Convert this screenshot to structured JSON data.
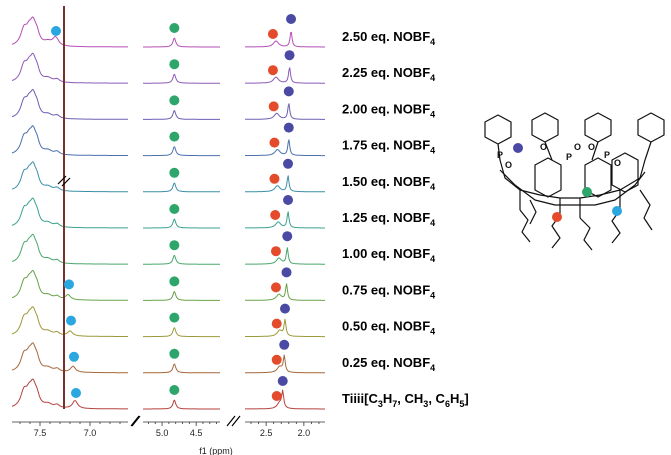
{
  "chart_data": {
    "type": "line",
    "xlabel": "f1 (ppm)",
    "x_ticks": [
      "7.5",
      "7.0",
      "5.0",
      "4.5",
      "2.5",
      "2.0"
    ],
    "x_ranges": [
      [
        7.78,
        6.62
      ],
      [
        5.28,
        4.15
      ],
      [
        2.78,
        1.72
      ]
    ],
    "series": [
      {
        "name_main": "2.50 eq. NOBF",
        "name_sub": "4",
        "name_tail": "",
        "color": "#b44fb6",
        "blue": 7.35,
        "blue_h": 6,
        "green": 4.82,
        "red": 2.37,
        "indigo": 2.17
      },
      {
        "name_main": "2.25 eq. NOBF",
        "name_sub": "4",
        "name_tail": "",
        "color": "#8a5ab8",
        "blue": 7.28,
        "blue_h": 0,
        "green": 4.82,
        "red": 2.37,
        "indigo": 2.19
      },
      {
        "name_main": "2.00 eq. NOBF",
        "name_sub": "4",
        "name_tail": "",
        "color": "#6a60b2",
        "blue": 7.28,
        "blue_h": 0,
        "green": 4.82,
        "red": 2.36,
        "indigo": 2.2
      },
      {
        "name_main": "1.75 eq. NOBF",
        "name_sub": "4",
        "name_tail": "",
        "color": "#4a70ad",
        "blue": 7.28,
        "blue_h": 0,
        "green": 4.82,
        "red": 2.35,
        "indigo": 2.2
      },
      {
        "name_main": "1.50 eq. NOBF",
        "name_sub": "4",
        "name_tail": "",
        "color": "#3a8fa6",
        "blue": 7.28,
        "blue_h": 0,
        "green": 4.82,
        "red": 2.35,
        "indigo": 2.21
      },
      {
        "name_main": "1.25 eq. NOBF",
        "name_sub": "4",
        "name_tail": "",
        "color": "#39a08e",
        "blue": 7.28,
        "blue_h": 0,
        "green": 4.82,
        "red": 2.34,
        "indigo": 2.21
      },
      {
        "name_main": "1.00 eq. NOBF",
        "name_sub": "4",
        "name_tail": "",
        "color": "#49a76c",
        "blue": 7.28,
        "blue_h": 0,
        "green": 4.82,
        "red": 2.33,
        "indigo": 2.22
      },
      {
        "name_main": "0.75 eq. NOBF",
        "name_sub": "4",
        "name_tail": "",
        "color": "#69a24a",
        "blue": 7.22,
        "blue_h": 5,
        "green": 4.82,
        "red": 2.33,
        "indigo": 2.23
      },
      {
        "name_main": "0.50 eq. NOBF",
        "name_sub": "4",
        "name_tail": "",
        "color": "#9c9a3a",
        "blue": 7.2,
        "blue_h": 5,
        "green": 4.82,
        "red": 2.32,
        "indigo": 2.25
      },
      {
        "name_main": "0.25 eq. NOBF",
        "name_sub": "4",
        "name_tail": "",
        "color": "#a4683b",
        "blue": 7.17,
        "blue_h": 6,
        "green": 4.82,
        "red": 2.32,
        "indigo": 2.26
      },
      {
        "name_main": "Tiiii[C",
        "name_sub": "3",
        "name_tail": "H",
        "color": "#b5423e",
        "blue": 7.15,
        "blue_h": 8,
        "green": 4.82,
        "red": 2.32,
        "indigo": 2.28
      }
    ],
    "last_label_parts": [
      "Tiiii[C",
      "3",
      "H",
      "7",
      ", CH",
      "3",
      ", C",
      "6",
      "H",
      "5",
      "]"
    ],
    "marker_colors": {
      "blue": "#2aa6e0",
      "green": "#2ea56a",
      "red": "#e34b2b",
      "indigo": "#4a4aa4"
    }
  },
  "structure": {
    "atoms": [
      "P",
      "O",
      "O",
      "P",
      "O",
      "O",
      "P",
      "O"
    ]
  }
}
